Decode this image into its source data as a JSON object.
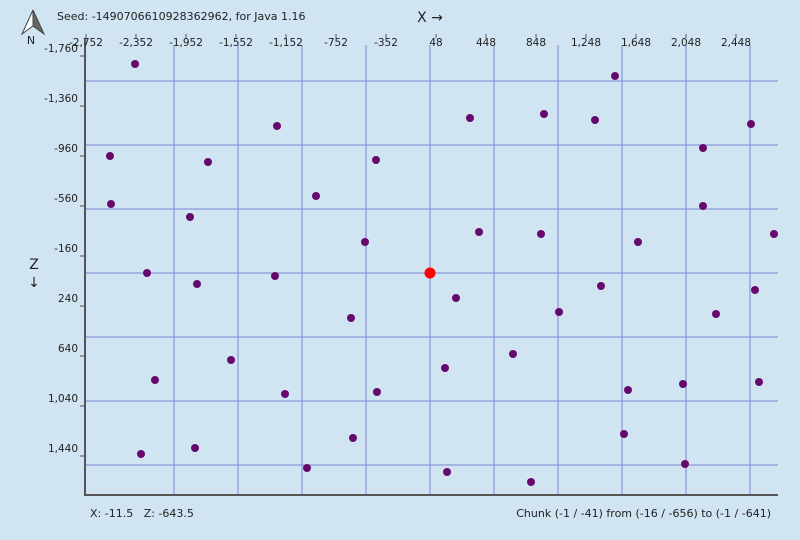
{
  "chart_data": {
    "type": "scatter",
    "title": "Seed: -1490706610928362962, for Java 1.16",
    "x_label": "X →",
    "y_label": "Z ↓",
    "compass_label": "N",
    "cursor_position": "X: -11.5   Z: -643.5",
    "chunk_info": "Chunk (-1 / -41) from (-16 / -656) to (-1 / -641)",
    "xlim": [
      -2760,
      2784
    ],
    "ylim": [
      -1800,
      1800
    ],
    "y_inverted": true,
    "xticks": [
      {
        "value": -2752,
        "label": "-2,752"
      },
      {
        "value": -2352,
        "label": "-2,352"
      },
      {
        "value": -1952,
        "label": "-1,952"
      },
      {
        "value": -1552,
        "label": "-1,552"
      },
      {
        "value": -1152,
        "label": "-1,152"
      },
      -752,
      -352,
      48,
      448,
      848,
      {
        "value": 1248,
        "label": "1,248"
      },
      {
        "value": 1648,
        "label": "1,648"
      },
      {
        "value": 2048,
        "label": "2,048"
      },
      {
        "value": 2448,
        "label": "2,448"
      }
    ],
    "yticks": [
      {
        "value": -1760,
        "label": "-1,760"
      },
      {
        "value": -1360,
        "label": "-1,360"
      },
      -960,
      -560,
      -160,
      240,
      640,
      {
        "value": 1040,
        "label": "1,040"
      },
      {
        "value": 1440,
        "label": "1,440"
      }
    ],
    "x_grid": [
      -2048,
      -1536,
      -1024,
      -512,
      0,
      512,
      1024,
      1536,
      2048,
      2560
    ],
    "y_grid": [
      -1536,
      -1024,
      -512,
      0,
      512,
      1024,
      1536
    ],
    "grid_color": "#7d84d6",
    "series": [
      {
        "color": "#650a6c",
        "x": [
          -2360,
          -2560,
          -2552,
          -2264,
          -1776,
          -1920,
          -1864,
          -2200,
          -1592,
          -2312,
          -1880,
          -1224,
          -1240,
          -912,
          -1160,
          -984,
          -432,
          -520,
          -632,
          -424,
          -616,
          320,
          392,
          208,
          120,
          136,
          912,
          888,
          664,
          1032,
          808,
          1320,
          1480,
          1664,
          1368,
          1584,
          1552,
          2184,
          2184,
          2288,
          2024,
          2040,
          2568,
          2600,
          2752,
          2632
        ],
        "values": [
          -1672,
          -936,
          -552,
          0,
          -888,
          -448,
          88,
          856,
          696,
          1448,
          1400,
          -1176,
          24,
          -616,
          968,
          1560,
          -904,
          -248,
          360,
          952,
          1320,
          -1240,
          -328,
          200,
          760,
          1592,
          -1272,
          -312,
          648,
          312,
          1672,
          -1224,
          -1576,
          -248,
          104,
          936,
          1288,
          -1000,
          -536,
          328,
          888,
          1528,
          -1192,
          136,
          -312,
          872
        ]
      },
      {
        "color": "#ff0000",
        "x": [
          0
        ],
        "values": [
          0
        ]
      }
    ]
  }
}
